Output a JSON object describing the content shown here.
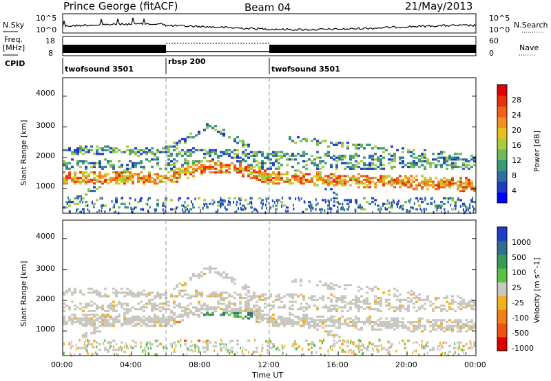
{
  "header": {
    "station": "Prince George (fitACF)",
    "beam": "Beam 04",
    "date": "21/May/2013"
  },
  "top_panels": {
    "nsky_label": "N.Sky",
    "nsky_ticks": [
      "10^5",
      "10^0"
    ],
    "nsearch_label": "N.Search",
    "freq_label": "Freq.",
    "freq_unit": "[MHz]",
    "freq_ticks": [
      "18",
      "8"
    ],
    "nave_label": "Nave",
    "nave_ticks": [
      "60",
      "0"
    ],
    "cpid_label": "CPID",
    "cpid_segments": [
      {
        "name": "twofsound 3501",
        "start_hour": 0,
        "end_hour": 6
      },
      {
        "name": "rbsp 200",
        "start_hour": 6,
        "end_hour": 12
      },
      {
        "name": "twofsound 3501",
        "start_hour": 12,
        "end_hour": 24
      }
    ]
  },
  "chart_data": [
    {
      "type": "heatmap",
      "name": "power",
      "ylabel": "Slant Range [km]",
      "yticks": [
        1000,
        2000,
        3000,
        4000
      ],
      "ylim": [
        200,
        4600
      ],
      "xlim_hours": [
        0,
        24
      ],
      "colorbar_label": "Power [dB]",
      "colorbar_ticks": [
        "28",
        "24",
        "20",
        "16",
        "12",
        "8",
        "4"
      ],
      "colorbar_colors": [
        "#0000ff",
        "#1f3cc8",
        "#2f6fa0",
        "#3a9a78",
        "#6fb85a",
        "#a8cc3c",
        "#e8c020",
        "#f09020",
        "#f06018",
        "#e83010",
        "#e00000"
      ]
    },
    {
      "type": "heatmap",
      "name": "velocity",
      "ylabel": "Slant Range [km]",
      "yticks": [
        1000,
        2000,
        3000,
        4000
      ],
      "ylim": [
        200,
        4600
      ],
      "xlim_hours": [
        0,
        24
      ],
      "xlabel": "Time UT",
      "xticks": [
        "00:00",
        "04:00",
        "08:00",
        "12:00",
        "16:00",
        "20:00",
        "00:00"
      ],
      "colorbar_label": "Velocity [m s^-1]",
      "colorbar_ticks": [
        "1000",
        "500",
        "100",
        "25",
        "-25",
        "-100",
        "-500",
        "-1000"
      ],
      "colorbar_colors": [
        "#1f3cc8",
        "#2f6f8a",
        "#3a9a58",
        "#5cc040",
        "#c8c8c0",
        "#f0b020",
        "#f08018",
        "#f05010",
        "#e00000"
      ]
    }
  ]
}
